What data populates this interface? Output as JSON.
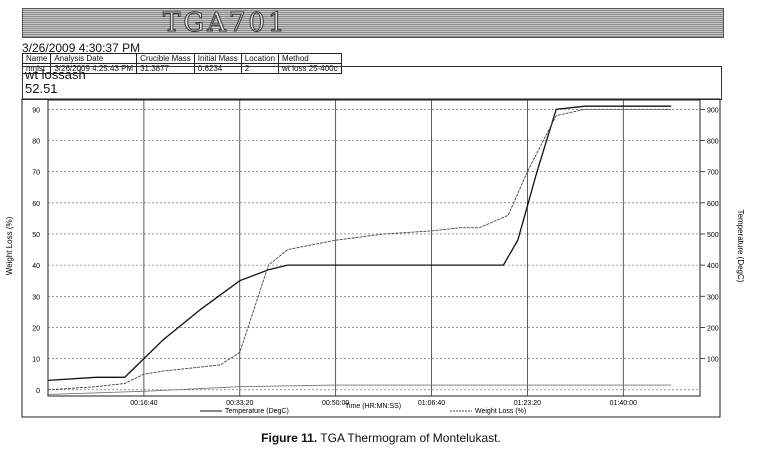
{
  "banner": {
    "title": "TGA701"
  },
  "header": {
    "datetime": "3/26/2009 4:30:37 PM",
    "info": {
      "columns": [
        "Name",
        "Analysis Date",
        "Crucible Mass",
        "Initial Mass",
        "Location",
        "Method"
      ],
      "values": [
        "mnlst",
        "3/26/2009 4:25:43 PM",
        "31.3877",
        "0.6234",
        "2",
        "wt loss 25-400c"
      ]
    },
    "wt_label": "wt lossash",
    "wt_value": "52.51"
  },
  "chart_data": {
    "type": "line",
    "xlabel": "Time (HR:MN:SS)",
    "ylabel_left": "Weight Loss (%)",
    "ylabel_right": "Temperature (DegC)",
    "x_ticks": [
      "00:16:40",
      "00:33:20",
      "00:50:00",
      "01:06:40",
      "01:23:20",
      "01:40:00"
    ],
    "x_tick_seconds": [
      1000,
      2000,
      3000,
      4000,
      5000,
      6000
    ],
    "xlim_seconds": [
      0,
      6800
    ],
    "y_left_ticks": [
      0,
      10,
      20,
      30,
      40,
      50,
      60,
      70,
      80,
      90
    ],
    "ylim_left": [
      -2,
      93
    ],
    "y_right_ticks": [
      100,
      200,
      300,
      400,
      500,
      600,
      700,
      800,
      900
    ],
    "ylim_right": [
      -20,
      930
    ],
    "legend": [
      "Temperature (DegC)",
      "Time (HR:MN:SS)",
      "Weight Loss (%)"
    ],
    "grid": true,
    "series": [
      {
        "name": "Temperature (DegC)",
        "axis": "right",
        "color": "#111111",
        "x": [
          0,
          500,
          800,
          1200,
          1600,
          2000,
          2300,
          2500,
          3500,
          4000,
          4500,
          4750,
          4900,
          5100,
          5300,
          5600,
          6000,
          6500
        ],
        "values": [
          30,
          40,
          40,
          160,
          260,
          350,
          385,
          400,
          400,
          400,
          400,
          400,
          480,
          700,
          900,
          910,
          910,
          910
        ]
      },
      {
        "name": "Weight Loss (%)",
        "axis": "left",
        "color": "#444444",
        "x": [
          0,
          500,
          800,
          1000,
          1200,
          1500,
          1800,
          2000,
          2300,
          2500,
          3000,
          3500,
          4000,
          4300,
          4500,
          4800,
          5000,
          5300,
          5600,
          6000,
          6500
        ],
        "values": [
          0,
          1,
          2,
          5,
          6,
          7,
          8,
          12,
          40,
          45,
          48,
          50,
          51,
          52,
          52,
          56,
          70,
          88,
          90,
          90,
          90
        ]
      },
      {
        "name": "",
        "axis": "left",
        "color": "#777777",
        "x": [
          0,
          1000,
          2000,
          3000,
          4000,
          5000,
          6000,
          6500
        ],
        "values": [
          -1.5,
          -0.5,
          1,
          1.5,
          1.5,
          1.5,
          1.5,
          1.5
        ]
      }
    ]
  },
  "caption": {
    "label": "Figure 11.",
    "text": " TGA Thermogram of Montelukast."
  }
}
